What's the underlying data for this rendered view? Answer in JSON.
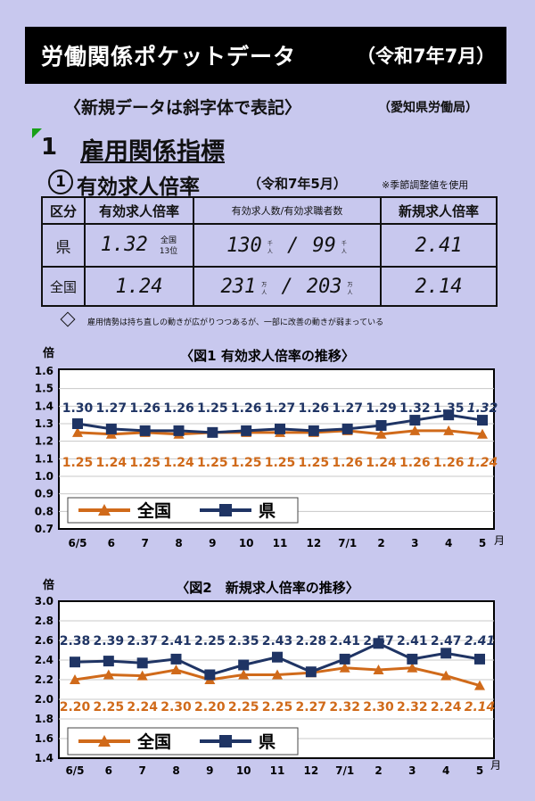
{
  "header": {
    "title": "労働関係ポケットデータ",
    "date": "（令和7年7月）"
  },
  "note": "〈新規データは斜字体で表記〉",
  "source": "（愛知県労働局）",
  "section": {
    "number": "1",
    "title": "雇用関係指標"
  },
  "subsection": {
    "number": "①",
    "title": "有効求人倍率",
    "date": "（令和7年5月）",
    "note": "※季節調整値を使用"
  },
  "table": {
    "headers": [
      "区分",
      "有効求人倍率",
      "有効求人数/有効求職者数",
      "新規求人倍率"
    ],
    "rows": [
      {
        "label": "県",
        "ratio": "1.32",
        "rank_line1": "全国",
        "rank_line2": "13位",
        "offers": "130",
        "seekers": "99",
        "unit1": "千人",
        "unit2": "千人",
        "new_ratio": "2.41"
      },
      {
        "label": "全国",
        "ratio": "1.24",
        "rank_line1": "",
        "rank_line2": "",
        "offers": "231",
        "seekers": "203",
        "unit1": "万人",
        "unit2": "万人",
        "new_ratio": "2.14"
      }
    ],
    "slash": "/"
  },
  "bullet_text": "雇用情勢は持ち直しの動きが広がりつつあるが、一部に改善の動きが弱まっている",
  "colors": {
    "prefecture": "#1f3464",
    "national": "#d06a1a",
    "background": "#c8c8ee"
  },
  "chart_data": [
    {
      "type": "line",
      "title": "〈図1 有効求人倍率の推移〉",
      "ylabel": "倍",
      "xunit": "月",
      "categories": [
        "6/5",
        "6",
        "7",
        "8",
        "9",
        "10",
        "11",
        "12",
        "7/1",
        "2",
        "3",
        "4",
        "5"
      ],
      "ylim": [
        0.7,
        1.6
      ],
      "yticks": [
        "0.7",
        "0.8",
        "0.9",
        "1.0",
        "1.1",
        "1.2",
        "1.3",
        "1.4",
        "1.5",
        "1.6"
      ],
      "grid": true,
      "legend": "bottom-left",
      "series": [
        {
          "name": "全国",
          "values": [
            1.25,
            1.24,
            1.25,
            1.24,
            1.25,
            1.25,
            1.25,
            1.25,
            1.26,
            1.24,
            1.26,
            1.26,
            1.24
          ],
          "labels": [
            "1.25",
            "1.24",
            "1.25",
            "1.24",
            "1.25",
            "1.25",
            "1.25",
            "1.25",
            "1.26",
            "1.24",
            "1.26",
            "1.26",
            "1.24"
          ]
        },
        {
          "name": "県",
          "values": [
            1.3,
            1.27,
            1.26,
            1.26,
            1.25,
            1.26,
            1.27,
            1.26,
            1.27,
            1.29,
            1.32,
            1.35,
            1.32
          ],
          "labels": [
            "1.30",
            "1.27",
            "1.26",
            "1.26",
            "1.25",
            "1.26",
            "1.27",
            "1.26",
            "1.27",
            "1.29",
            "1.32",
            "1.35",
            "1.32"
          ]
        }
      ]
    },
    {
      "type": "line",
      "title": "〈図2　新規求人倍率の推移〉",
      "ylabel": "倍",
      "xunit": "月",
      "categories": [
        "6/5",
        "6",
        "7",
        "8",
        "9",
        "10",
        "11",
        "12",
        "7/1",
        "2",
        "3",
        "4",
        "5"
      ],
      "ylim": [
        1.4,
        3.0
      ],
      "yticks": [
        "1.4",
        "1.6",
        "1.8",
        "2.0",
        "2.2",
        "2.4",
        "2.6",
        "2.8",
        "3.0"
      ],
      "grid": true,
      "legend": "bottom-left",
      "series": [
        {
          "name": "全国",
          "values": [
            2.2,
            2.25,
            2.24,
            2.3,
            2.2,
            2.25,
            2.25,
            2.27,
            2.32,
            2.3,
            2.32,
            2.24,
            2.14
          ],
          "labels": [
            "2.20",
            "2.25",
            "2.24",
            "2.30",
            "2.20",
            "2.25",
            "2.25",
            "2.27",
            "2.32",
            "2.30",
            "2.32",
            "2.24",
            "2.14"
          ]
        },
        {
          "name": "県",
          "values": [
            2.38,
            2.39,
            2.37,
            2.41,
            2.25,
            2.35,
            2.43,
            2.28,
            2.41,
            2.57,
            2.41,
            2.47,
            2.41
          ],
          "labels": [
            "2.38",
            "2.39",
            "2.37",
            "2.41",
            "2.25",
            "2.35",
            "2.43",
            "2.28",
            "2.41",
            "2.57",
            "2.41",
            "2.47",
            "2.41"
          ]
        }
      ]
    }
  ]
}
